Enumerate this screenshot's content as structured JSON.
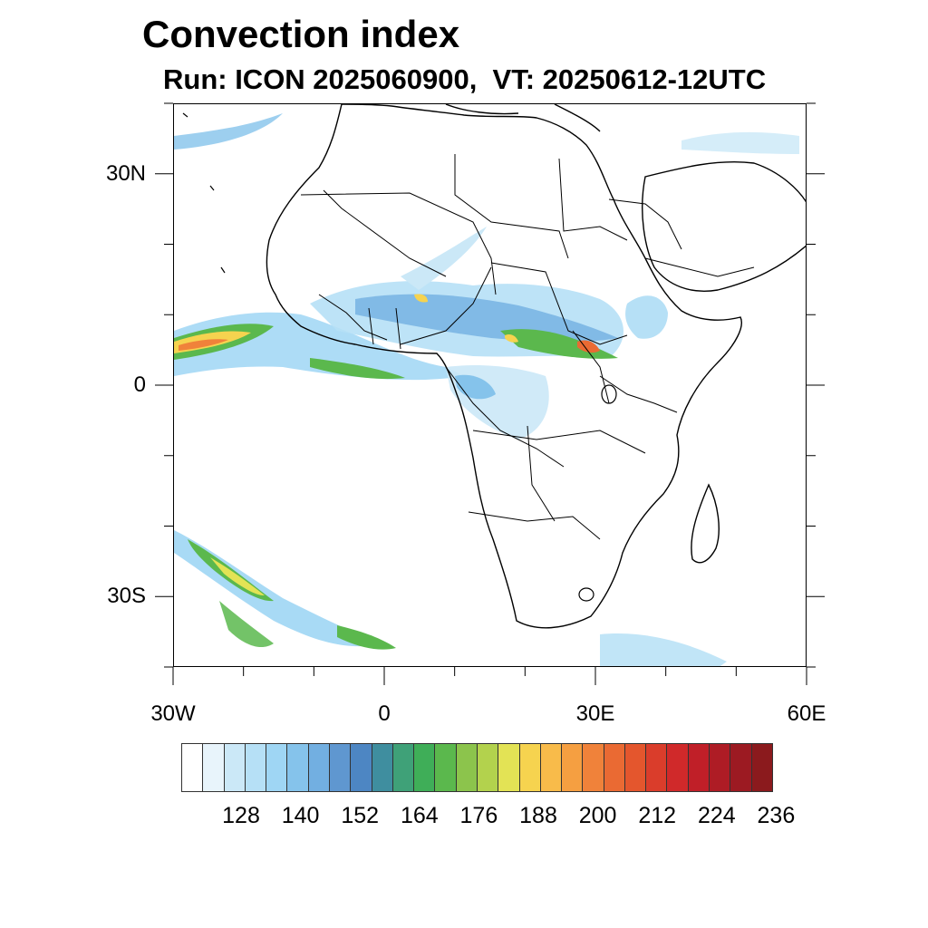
{
  "title": "Convection index",
  "subtitle": "Run: ICON 2025060900,  VT: 20250612-12UTC",
  "map": {
    "lon_range": [
      -30,
      60
    ],
    "lat_range": [
      -40,
      40
    ],
    "x_ticks": [
      {
        "value": -30,
        "label": "30W"
      },
      {
        "value": 0,
        "label": "0"
      },
      {
        "value": 30,
        "label": "30E"
      },
      {
        "value": 60,
        "label": "60E"
      }
    ],
    "y_ticks": [
      {
        "value": 30,
        "label": "30N"
      },
      {
        "value": 0,
        "label": "0"
      },
      {
        "value": -30,
        "label": "30S"
      }
    ]
  },
  "colorbar": {
    "colors": [
      "#ffffff",
      "#e8f4fb",
      "#cbe8f7",
      "#b6e0f6",
      "#9fd6f4",
      "#85c3eb",
      "#72afe1",
      "#5f97d0",
      "#4d86c3",
      "#3f8e9f",
      "#3fa178",
      "#3fae58",
      "#5bb84d",
      "#8cc44c",
      "#b3d24d",
      "#e3e355",
      "#f6d34f",
      "#f8bb4a",
      "#f59f41",
      "#f0823a",
      "#ea6a33",
      "#e4562d",
      "#da3d2b",
      "#d0292a",
      "#c01f28",
      "#ae1c25",
      "#9c1a22",
      "#8b1a1d"
    ],
    "labels": [
      "128",
      "140",
      "152",
      "164",
      "176",
      "188",
      "200",
      "212",
      "224",
      "236"
    ]
  }
}
